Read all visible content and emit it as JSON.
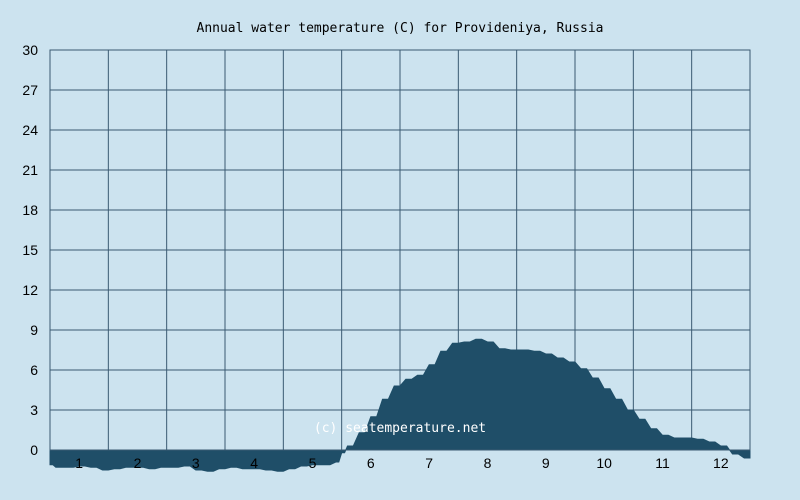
{
  "chart_data": {
    "type": "area",
    "title": "Annual water temperature (C) for Provideniya, Russia",
    "xlabel": "",
    "ylabel": "",
    "xlim": [
      0.5,
      12.5
    ],
    "ylim": [
      0,
      30
    ],
    "y_ticks": [
      0,
      3,
      6,
      9,
      12,
      15,
      18,
      21,
      24,
      27,
      30
    ],
    "x_ticks": [
      1,
      2,
      3,
      4,
      5,
      6,
      7,
      8,
      9,
      10,
      11,
      12
    ],
    "grid": true,
    "legend": "none",
    "watermark": "(c) seatemperature.net",
    "colors": {
      "background": "#cce3ef",
      "area": "#1f4e68",
      "grid": "#3a5a72",
      "watermark": "#ffffff"
    },
    "series": [
      {
        "x": [
          0.5,
          0.6,
          0.8,
          1.0,
          1.2,
          1.4,
          1.6,
          1.8,
          2.0,
          2.2,
          2.4,
          2.6,
          2.8,
          3.0,
          3.2,
          3.4,
          3.6,
          3.8,
          4.0,
          4.2,
          4.4,
          4.6,
          4.8,
          5.0,
          5.2,
          5.4,
          5.5,
          5.6,
          5.8,
          6.0,
          6.2,
          6.4,
          6.6,
          6.8,
          7.0,
          7.2,
          7.4,
          7.6,
          7.8,
          8.0,
          8.2,
          8.4,
          8.6,
          8.8,
          9.0,
          9.2,
          9.4,
          9.6,
          9.8,
          10.0,
          10.2,
          10.4,
          10.6,
          10.8,
          11.0,
          11.2,
          11.4,
          11.6,
          11.8,
          12.0,
          12.2,
          12.4,
          12.5
        ],
        "y": [
          -1.1,
          -1.3,
          -1.3,
          -1.2,
          -1.3,
          -1.5,
          -1.4,
          -1.3,
          -1.3,
          -1.4,
          -1.3,
          -1.3,
          -1.2,
          -1.5,
          -1.6,
          -1.4,
          -1.3,
          -1.4,
          -1.4,
          -1.5,
          -1.6,
          -1.4,
          -1.2,
          -1.1,
          -1.1,
          -0.9,
          -0.2,
          0.3,
          1.3,
          2.5,
          3.8,
          4.8,
          5.3,
          5.6,
          6.4,
          7.4,
          8.0,
          8.1,
          8.3,
          8.1,
          7.6,
          7.5,
          7.5,
          7.4,
          7.2,
          6.9,
          6.6,
          6.1,
          5.4,
          4.6,
          3.8,
          3.0,
          2.3,
          1.6,
          1.1,
          0.9,
          0.9,
          0.8,
          0.6,
          0.3,
          -0.3,
          -0.6,
          -0.6
        ]
      }
    ]
  }
}
